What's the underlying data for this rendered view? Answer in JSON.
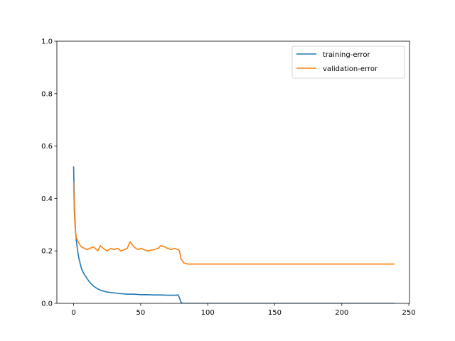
{
  "chart_data": {
    "type": "line",
    "title": "",
    "xlabel": "",
    "ylabel": "",
    "xlim": [
      -12.5,
      250.5
    ],
    "ylim": [
      0,
      1.0
    ],
    "xticks": [
      0,
      50,
      100,
      150,
      200,
      250
    ],
    "yticks": [
      0.0,
      0.2,
      0.4,
      0.6,
      0.8,
      1.0
    ],
    "xtick_labels": [
      "0",
      "50",
      "100",
      "150",
      "200",
      "250"
    ],
    "ytick_labels": [
      "0.0",
      "0.2",
      "0.4",
      "0.6",
      "0.8",
      "1.0"
    ],
    "grid": false,
    "legend_position": "top-right",
    "series": [
      {
        "name": "training-error",
        "color": "#1f77b4",
        "x": [
          0,
          0.5,
          1,
          1.5,
          2,
          3,
          4,
          5,
          6,
          8,
          10,
          12,
          15,
          18,
          20,
          25,
          30,
          35,
          40,
          45,
          50,
          55,
          60,
          65,
          70,
          75,
          78,
          79,
          80,
          81,
          85,
          100,
          150,
          200,
          239
        ],
        "y": [
          0.52,
          0.38,
          0.32,
          0.27,
          0.24,
          0.2,
          0.17,
          0.15,
          0.13,
          0.11,
          0.095,
          0.08,
          0.065,
          0.055,
          0.05,
          0.043,
          0.04,
          0.037,
          0.035,
          0.035,
          0.033,
          0.033,
          0.032,
          0.032,
          0.031,
          0.031,
          0.032,
          0.02,
          0.005,
          0.0,
          0.0,
          0.0,
          0.0,
          0.0,
          0.0
        ]
      },
      {
        "name": "validation-error",
        "color": "#ff7f0e",
        "x": [
          0,
          0.5,
          1,
          1.5,
          2,
          3,
          4,
          5,
          6,
          8,
          10,
          12,
          15,
          18,
          20,
          22,
          25,
          28,
          30,
          33,
          35,
          38,
          40,
          42,
          45,
          48,
          50,
          55,
          60,
          63,
          65,
          68,
          70,
          73,
          75,
          78,
          79,
          80,
          82,
          85,
          100,
          150,
          200,
          239
        ],
        "y": [
          0.46,
          0.35,
          0.3,
          0.27,
          0.25,
          0.24,
          0.23,
          0.22,
          0.215,
          0.21,
          0.205,
          0.21,
          0.215,
          0.2,
          0.22,
          0.21,
          0.2,
          0.21,
          0.205,
          0.21,
          0.2,
          0.205,
          0.21,
          0.235,
          0.215,
          0.205,
          0.21,
          0.2,
          0.205,
          0.21,
          0.22,
          0.215,
          0.21,
          0.205,
          0.21,
          0.205,
          0.2,
          0.17,
          0.155,
          0.15,
          0.15,
          0.15,
          0.15,
          0.15
        ]
      }
    ]
  }
}
